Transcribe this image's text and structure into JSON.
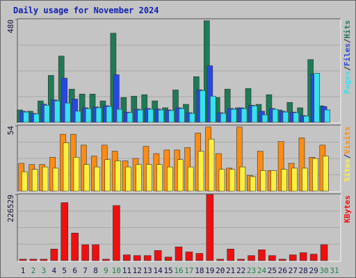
{
  "chart_data": [
    {
      "type": "bar",
      "title": "Daily usage for November 2024",
      "legend_separator": "/",
      "ylim": [
        0,
        480
      ],
      "yticks": [
        480
      ],
      "gridlines": [
        120,
        240,
        360
      ],
      "series": [
        {
          "name": "Hits",
          "color": "#1f7a56",
          "values": [
            58,
            52,
            100,
            219,
            309,
            155,
            132,
            132,
            100,
            416,
            116,
            122,
            129,
            100,
            68,
            151,
            84,
            213,
            474,
            116,
            155,
            68,
            158,
            84,
            129,
            58,
            93,
            68,
            293,
            77,
            0
          ]
        },
        {
          "name": "Files",
          "color": "#2848e0",
          "values": [
            52,
            42,
            85,
            105,
            206,
            109,
            68,
            72,
            78,
            222,
            48,
            62,
            65,
            62,
            58,
            68,
            45,
            152,
            264,
            45,
            65,
            68,
            80,
            52,
            65,
            52,
            48,
            32,
            225,
            74,
            0
          ]
        },
        {
          "name": "Pages",
          "color": "#38e0f0",
          "values": [
            48,
            39,
            80,
            100,
            90,
            52,
            64,
            68,
            74,
            61,
            45,
            58,
            61,
            58,
            55,
            64,
            42,
            148,
            122,
            42,
            61,
            64,
            77,
            35,
            61,
            48,
            45,
            29,
            229,
            58,
            0
          ]
        }
      ]
    },
    {
      "type": "bar",
      "ylim": [
        0,
        54
      ],
      "yticks": [
        54
      ],
      "gridlines": [
        13.5,
        27,
        40.5
      ],
      "series": [
        {
          "name": "Visits",
          "color": "#ff8c10",
          "values": [
            23,
            22,
            22,
            28,
            47,
            47,
            38,
            29,
            38,
            33,
            25,
            27,
            37,
            31,
            34,
            34,
            36,
            48,
            53,
            31,
            19,
            53,
            13,
            33,
            17,
            41,
            23,
            44,
            28,
            38,
            0
          ]
        },
        {
          "name": "Sites",
          "color": "#fff040",
          "values": [
            16,
            18,
            20,
            19,
            40,
            28,
            22,
            20,
            26,
            25,
            20,
            22,
            22,
            22,
            20,
            26,
            20,
            33,
            43,
            18,
            18,
            20,
            12,
            17,
            17,
            18,
            19,
            19,
            27,
            29,
            0
          ]
        }
      ]
    },
    {
      "type": "bar",
      "ylim": [
        0,
        226529
      ],
      "yticks": [
        226529
      ],
      "gridlines": [
        56632,
        113265,
        169897
      ],
      "categories": [
        "1",
        "2",
        "3",
        "4",
        "5",
        "6",
        "7",
        "8",
        "9",
        "10",
        "11",
        "12",
        "13",
        "14",
        "15",
        "16",
        "17",
        "18",
        "19",
        "20",
        "21",
        "22",
        "23",
        "24",
        "25",
        "26",
        "27",
        "28",
        "29",
        "30",
        "31"
      ],
      "category_colors": [
        "#101050",
        "#208050",
        "#208050",
        "#101050",
        "#101050",
        "#101050",
        "#101050",
        "#101050",
        "#208050",
        "#208050",
        "#101050",
        "#101050",
        "#101050",
        "#101050",
        "#101050",
        "#208050",
        "#208050",
        "#101050",
        "#101050",
        "#101050",
        "#101050",
        "#101050",
        "#208050",
        "#208050",
        "#101050",
        "#101050",
        "#101050",
        "#101050",
        "#101050",
        "#208050",
        "#208050"
      ],
      "series": [
        {
          "name": "KBytes",
          "color": "#ee1010",
          "values": [
            5000,
            5000,
            5000,
            39800,
            199000,
            94600,
            54700,
            54700,
            5000,
            189000,
            19900,
            17400,
            17400,
            34800,
            12400,
            47300,
            29900,
            24900,
            226529,
            5000,
            39800,
            5000,
            17400,
            37300,
            17400,
            5000,
            19900,
            27400,
            22400,
            54700,
            0
          ]
        }
      ]
    }
  ]
}
